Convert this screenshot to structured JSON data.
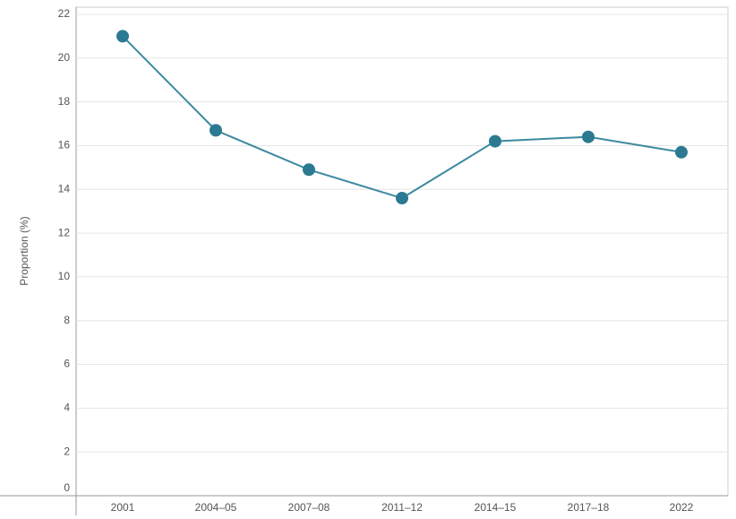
{
  "chart_data": {
    "type": "line",
    "y_label": "Proportion (%)",
    "categories": [
      "2001",
      "2004–05",
      "2007–08",
      "2011–12",
      "2014–15",
      "2017–18",
      "2022"
    ],
    "values": [
      21.0,
      16.7,
      14.9,
      13.6,
      16.2,
      16.4,
      15.7
    ],
    "color": "#3d8aa0",
    "marker_color": "#2b7a91",
    "ylim": [
      0,
      22
    ],
    "yticks": [
      0,
      2,
      4,
      6,
      8,
      10,
      12,
      14,
      16,
      18,
      20,
      22
    ],
    "grid": true
  }
}
